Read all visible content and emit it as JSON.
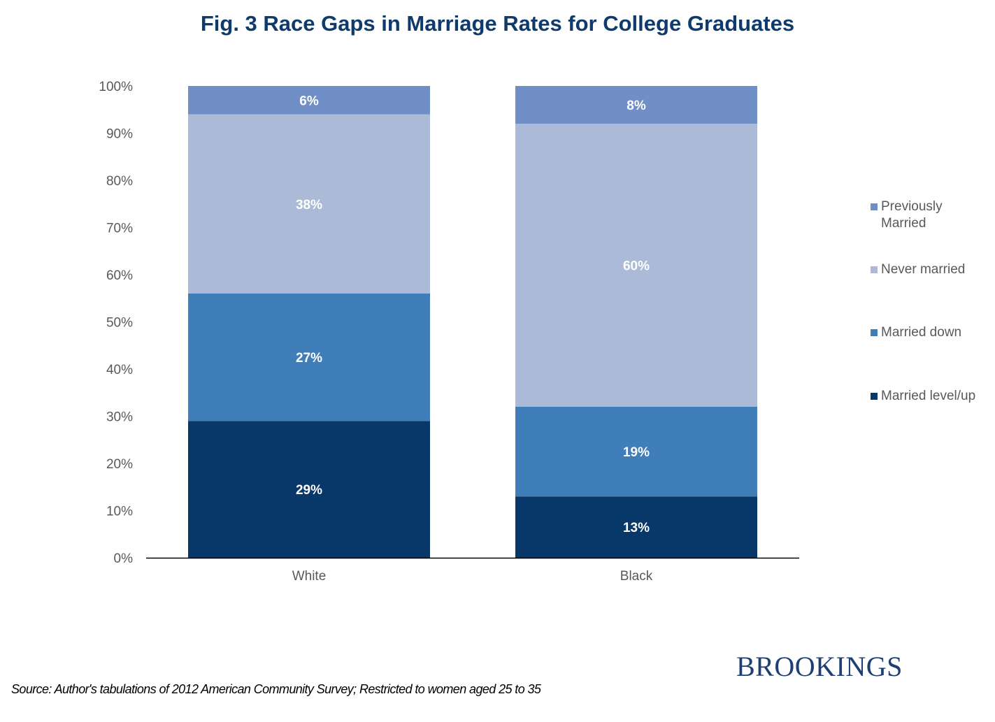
{
  "chart_data": {
    "type": "bar",
    "stacked": true,
    "title": "Fig. 3 Race Gaps in Marriage Rates for College Graduates",
    "categories": [
      "White",
      "Black"
    ],
    "series": [
      {
        "name": "Married level/up",
        "values": [
          29,
          13
        ],
        "color": "#08386A"
      },
      {
        "name": "Married down",
        "values": [
          27,
          19
        ],
        "color": "#407EBA"
      },
      {
        "name": "Never married",
        "values": [
          38,
          60
        ],
        "color": "#ABBAD7"
      },
      {
        "name": "Previously Married",
        "values": [
          6,
          8
        ],
        "color": "#708FC6"
      }
    ],
    "data_labels": [
      [
        "29%",
        "13%"
      ],
      [
        "27%",
        "19%"
      ],
      [
        "38%",
        "60%"
      ],
      [
        "6%",
        "8%"
      ]
    ],
    "ylim": [
      0,
      100
    ],
    "yticks": [
      "0%",
      "10%",
      "20%",
      "30%",
      "40%",
      "50%",
      "60%",
      "70%",
      "80%",
      "90%",
      "100%"
    ],
    "xlabel": "",
    "ylabel": "",
    "grid": false,
    "legend_position": "right"
  },
  "source": "Source: Author's tabulations of 2012 American Community Survey; Restricted to women  aged 25 to 35",
  "logo": "BROOKINGS"
}
